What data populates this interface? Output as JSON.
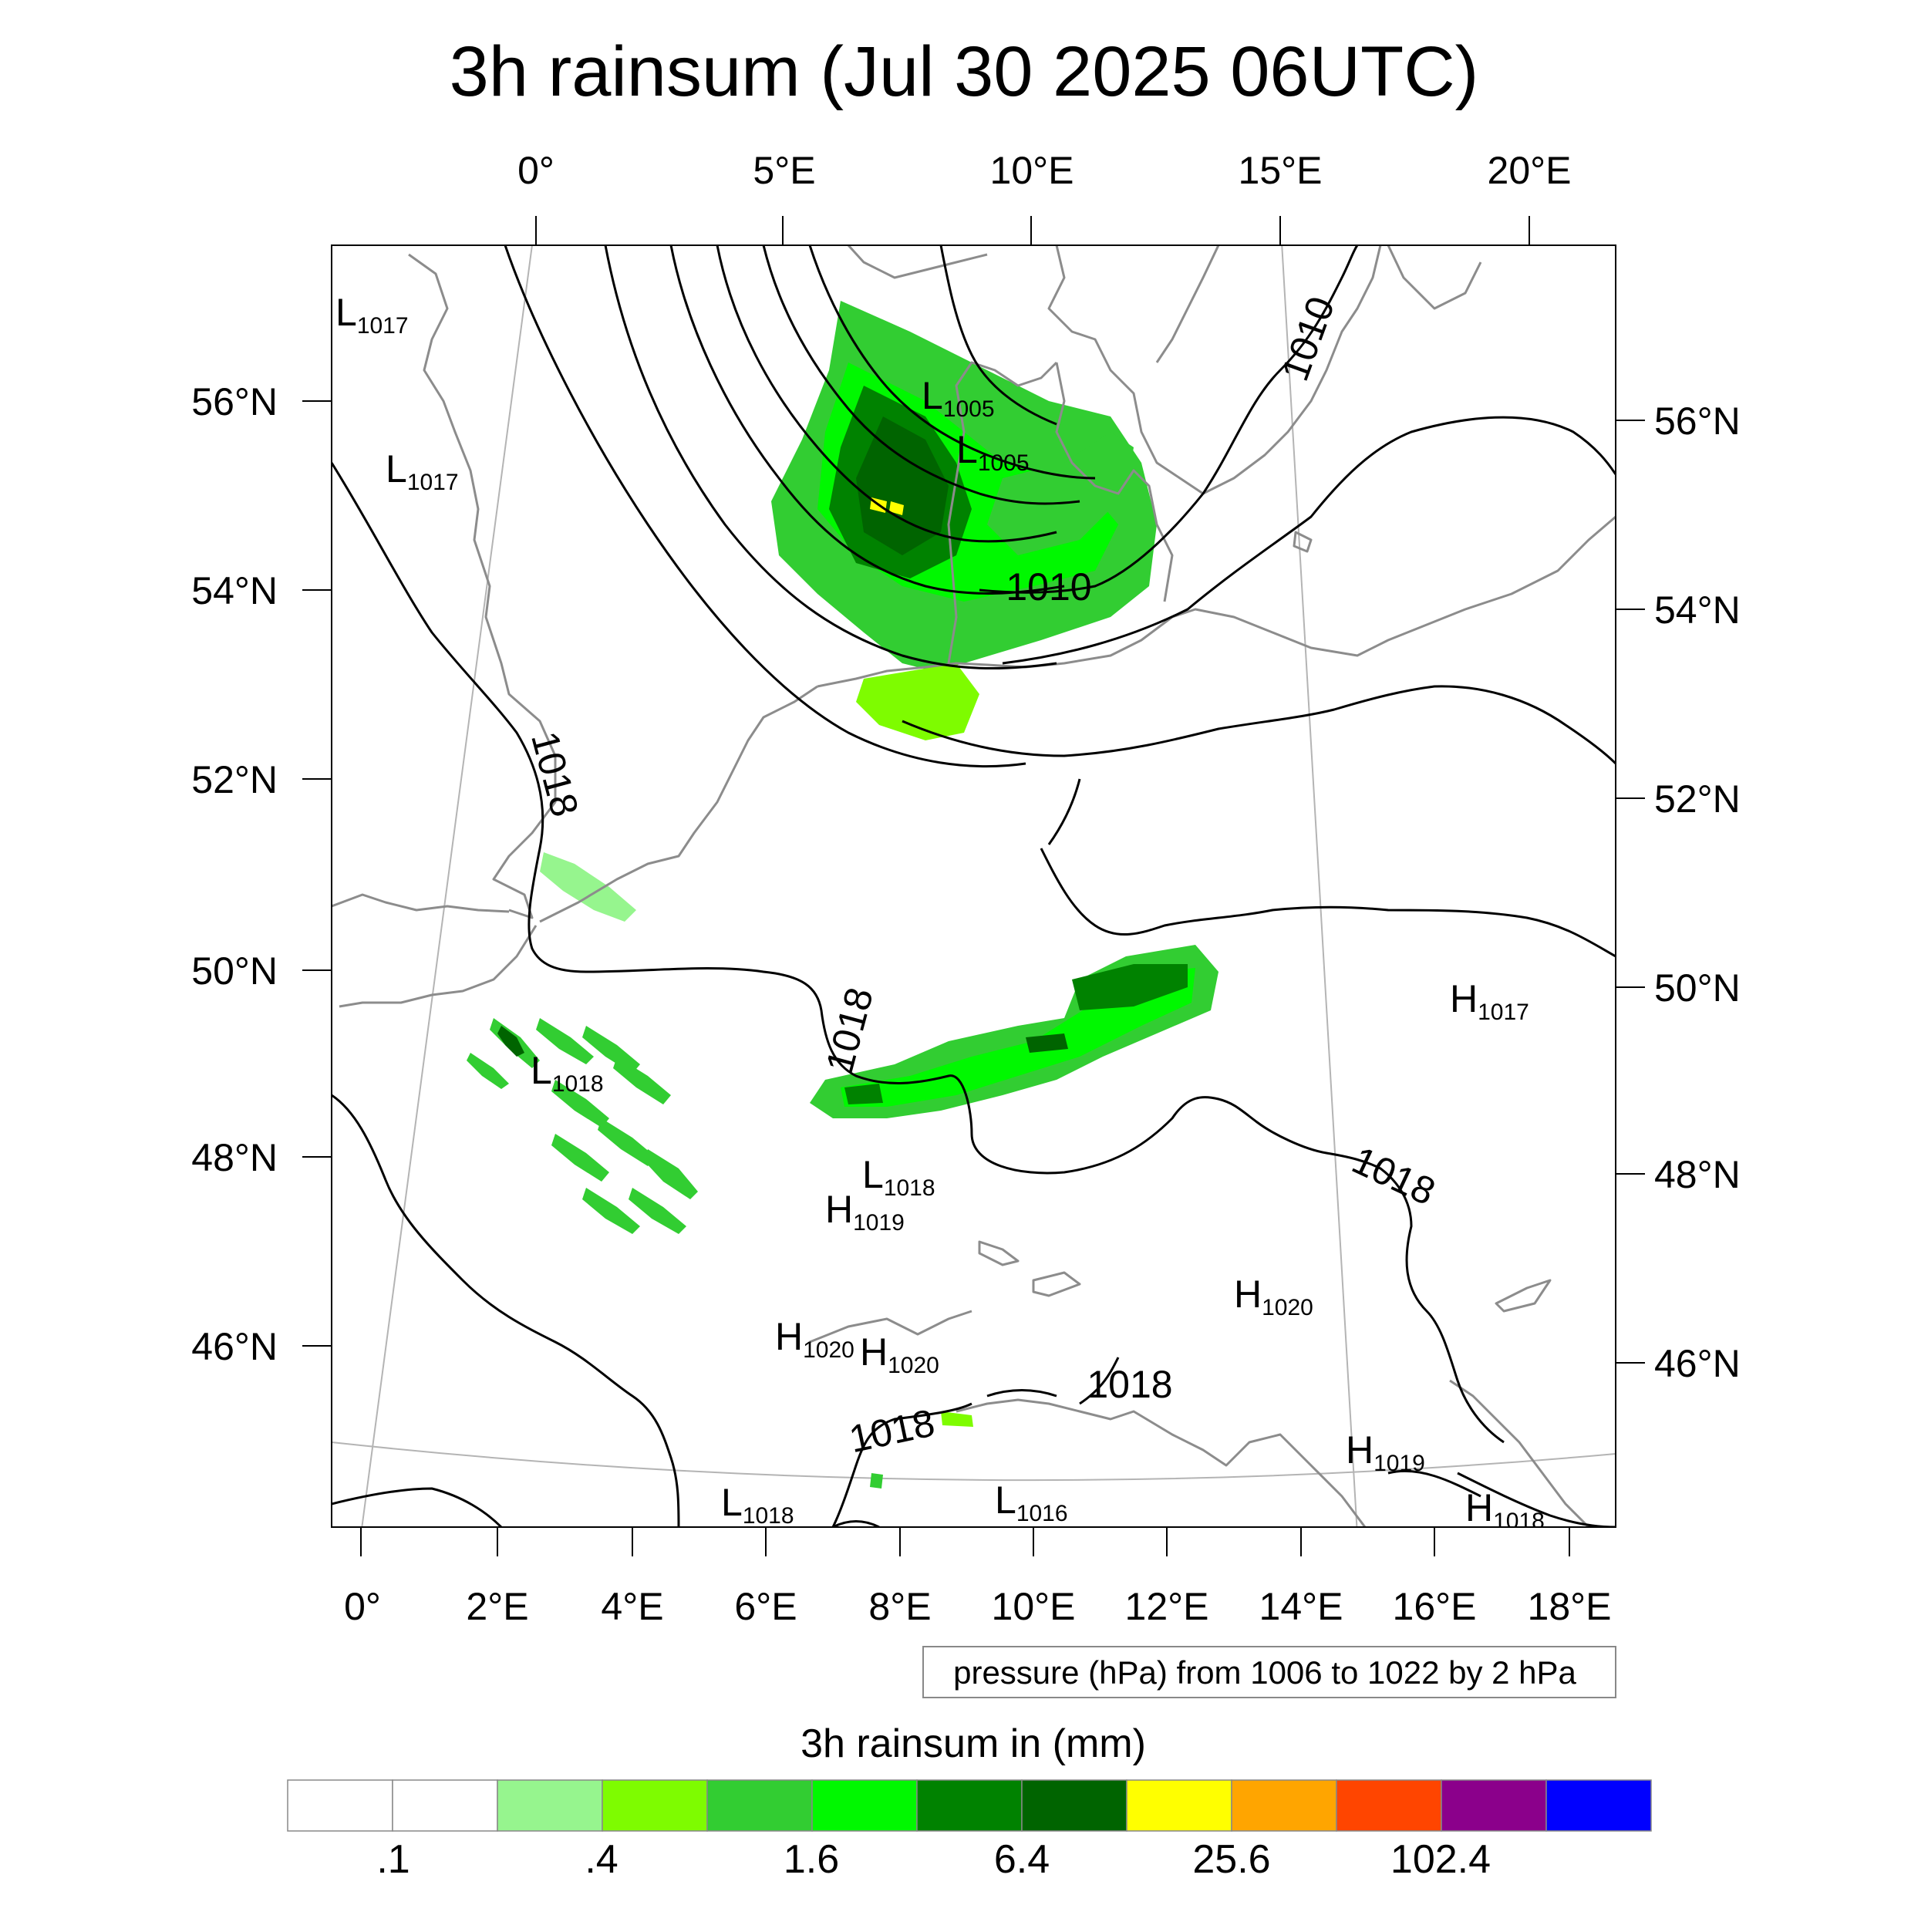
{
  "title": "3h rainsum (Jul 30 2025 06UTC)",
  "lon_labels_top": [
    "0°",
    "5°E",
    "10°E",
    "15°E",
    "20°E"
  ],
  "lon_labels_bottom": [
    "0°",
    "2°E",
    "4°E",
    "6°E",
    "8°E",
    "10°E",
    "12°E",
    "14°E",
    "16°E",
    "18°E"
  ],
  "lat_labels_left": [
    "56°N",
    "54°N",
    "52°N",
    "50°N",
    "48°N",
    "46°N"
  ],
  "lat_labels_right": [
    "56°N",
    "54°N",
    "52°N",
    "50°N",
    "48°N",
    "46°N"
  ],
  "pressure_centers": [
    {
      "type": "L",
      "value": "1017"
    },
    {
      "type": "L",
      "value": "1017"
    },
    {
      "type": "L",
      "value": "1005"
    },
    {
      "type": "L",
      "value": "1005"
    },
    {
      "type": "L",
      "value": "1018"
    },
    {
      "type": "L",
      "value": "1018"
    },
    {
      "type": "H",
      "value": "1019"
    },
    {
      "type": "H",
      "value": "1017"
    },
    {
      "type": "H",
      "value": "1020"
    },
    {
      "type": "H",
      "value": "1020"
    },
    {
      "type": "H",
      "value": "1020"
    },
    {
      "type": "H",
      "value": "1019"
    },
    {
      "type": "L",
      "value": "1018"
    },
    {
      "type": "L",
      "value": "1016"
    },
    {
      "type": "H",
      "value": "1018"
    }
  ],
  "contour_labels": [
    "1010",
    "1010",
    "1018",
    "1018",
    "1018",
    "1018",
    "1018"
  ],
  "info_box": "pressure (hPa) from 1006 to 1022 by 2 hPa",
  "legend": {
    "title": "3h rainsum in (mm)",
    "colors": [
      "#ffffff",
      "#ffffff",
      "#96f58e",
      "#7efc00",
      "#32cd32",
      "#00f800",
      "#008200",
      "#006400",
      "#ffff00",
      "#ffa500",
      "#ff4500",
      "#8b008b",
      "#0000ff"
    ],
    "tick_labels": [
      ".1",
      ".4",
      "1.6",
      "6.4",
      "25.6",
      "102.4"
    ]
  },
  "colors": {
    "coastline": "#8c8c8c",
    "isobar": "#000000",
    "graticule": "#b4b4b4"
  }
}
